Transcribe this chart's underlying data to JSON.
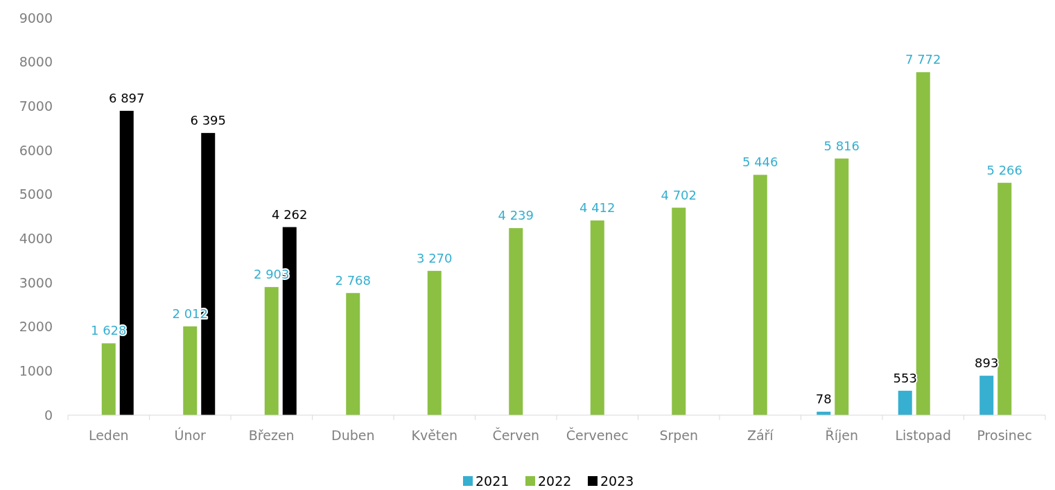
{
  "chart_data": {
    "type": "bar",
    "categories": [
      "Leden",
      "Únor",
      "Březen",
      "Duben",
      "Květen",
      "Červen",
      "Červenec",
      "Srpen",
      "Září",
      "Říjen",
      "Listopad",
      "Prosinec"
    ],
    "series": [
      {
        "name": "2021",
        "color": "#36afd0",
        "values": [
          null,
          null,
          null,
          null,
          null,
          null,
          null,
          null,
          null,
          78,
          553,
          893
        ]
      },
      {
        "name": "2022",
        "color": "#8bc043",
        "values": [
          1628,
          2012,
          2903,
          2768,
          3270,
          4239,
          4412,
          4702,
          5446,
          5816,
          7772,
          5266
        ]
      },
      {
        "name": "2023",
        "color": "#000000",
        "values": [
          6897,
          6395,
          4262,
          null,
          null,
          null,
          null,
          null,
          null,
          null,
          null,
          null
        ]
      }
    ],
    "ylim": [
      0,
      9000
    ],
    "yticks": [
      0,
      1000,
      2000,
      3000,
      4000,
      5000,
      6000,
      7000,
      8000,
      9000
    ],
    "grid": false,
    "legend": "bottom",
    "data_labels": true
  }
}
